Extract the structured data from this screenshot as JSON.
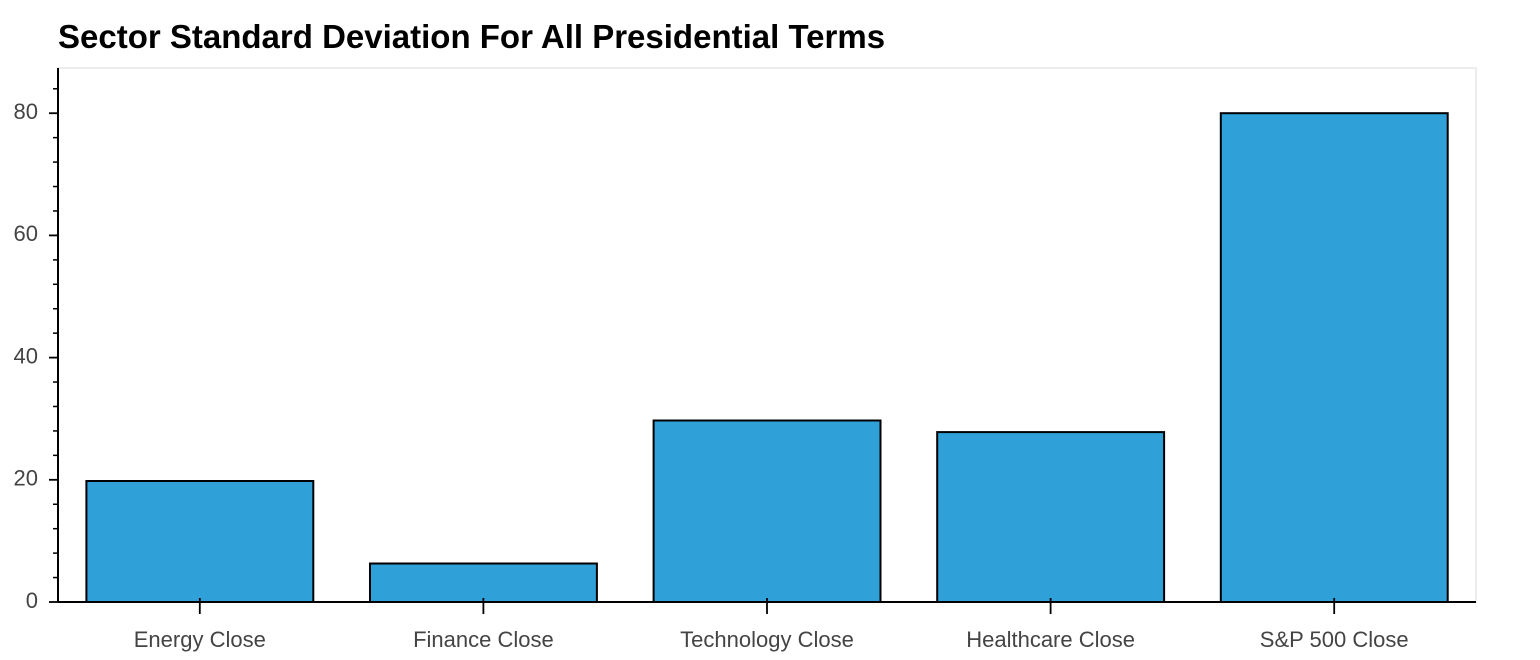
{
  "chart_data": {
    "type": "bar",
    "title": "Sector Standard Deviation For All Presidential Terms",
    "xlabel": "",
    "ylabel": "",
    "categories": [
      "Energy Close",
      "Finance Close",
      "Technology Close",
      "Healthcare Close",
      "S&P 500 Close"
    ],
    "values": [
      19.8,
      6.3,
      29.7,
      27.8,
      80.0
    ],
    "ylim": [
      0,
      87.4
    ],
    "yticks": [
      0,
      20,
      40,
      60,
      80
    ],
    "ytick_labels": [
      "0",
      "20",
      "40",
      "60",
      "80"
    ],
    "grid": false,
    "legend": "none",
    "bar_color": "#2fa1d8",
    "bar_edge_color": "#000000"
  }
}
